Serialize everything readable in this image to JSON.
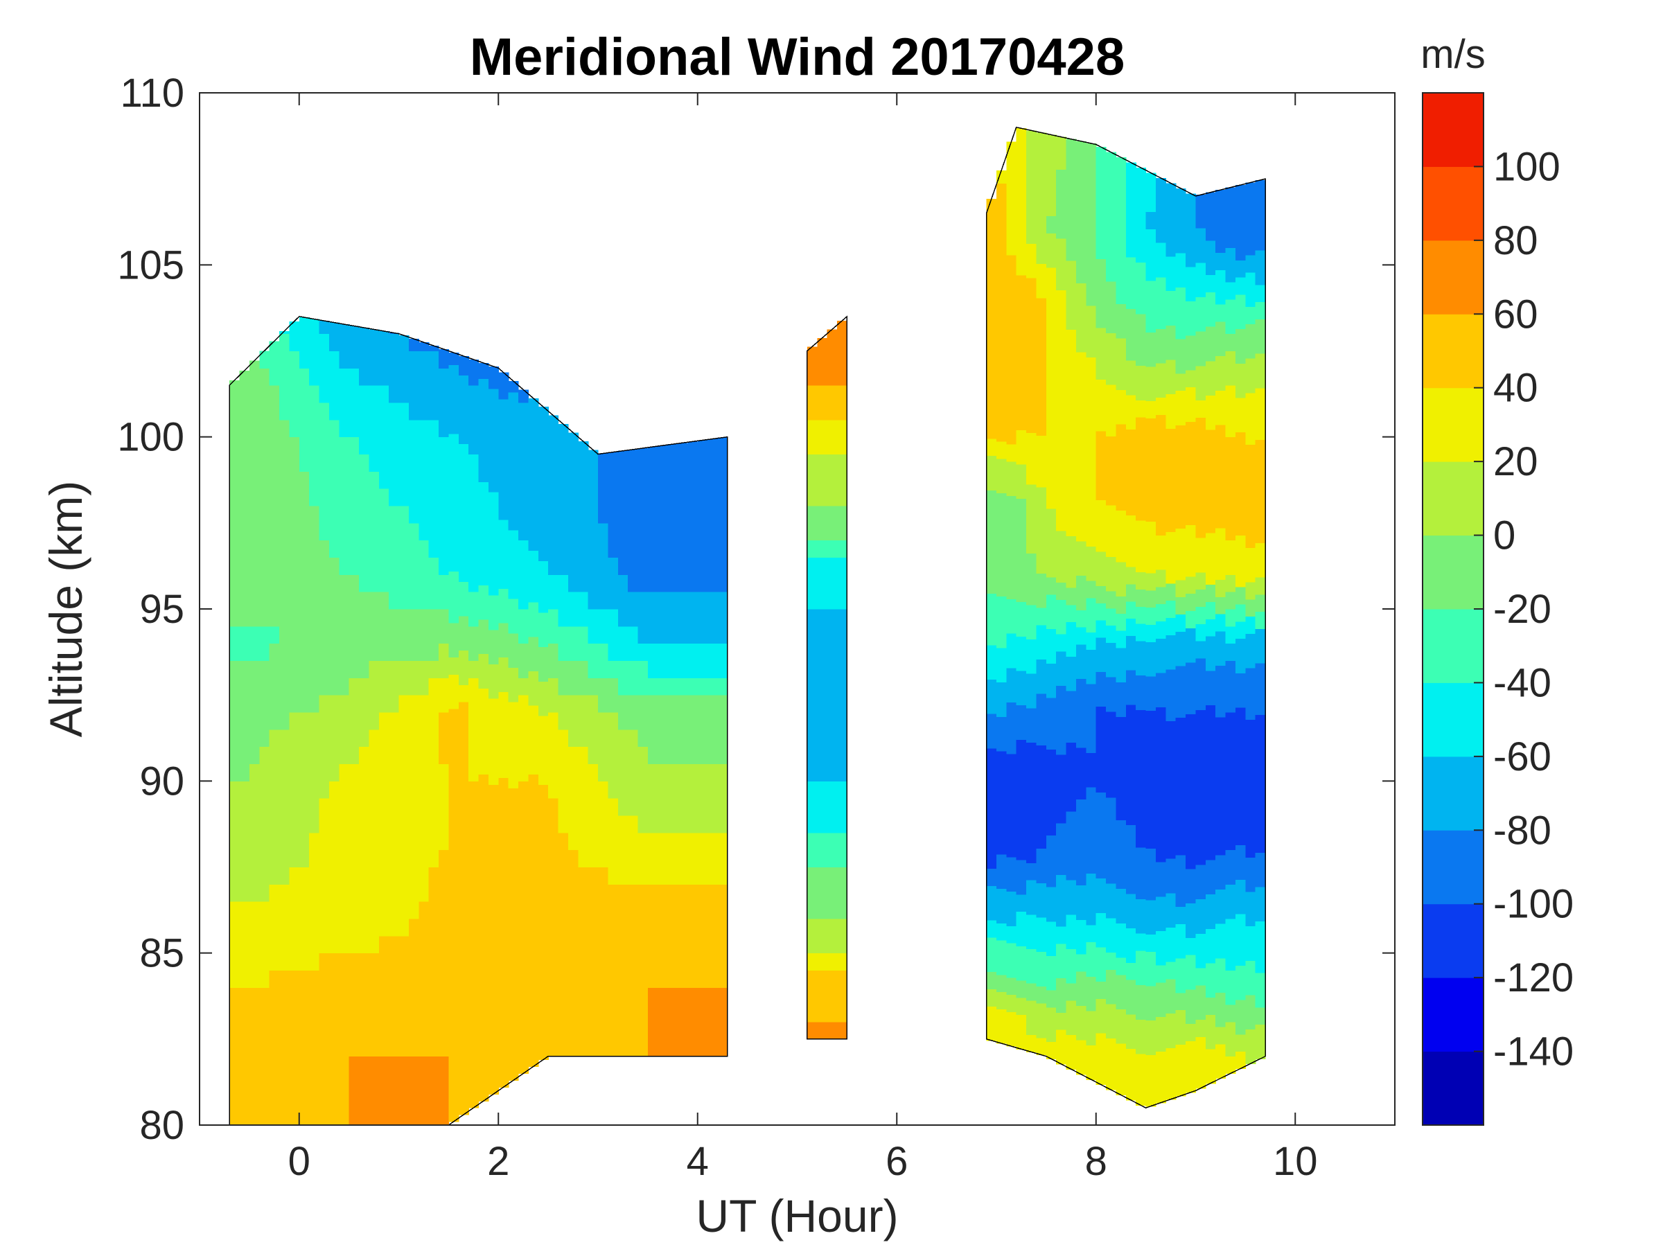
{
  "chart_data": {
    "type": "heatmap",
    "title": "Meridional Wind 20170428",
    "xlabel": "UT (Hour)",
    "ylabel": "Altitude (km)",
    "xlim": [
      -1,
      11
    ],
    "ylim": [
      80,
      110
    ],
    "xticks": [
      0,
      2,
      4,
      6,
      8,
      10
    ],
    "xtick_labels": [
      "0",
      "2",
      "4",
      "6",
      "8",
      "10"
    ],
    "yticks": [
      80,
      85,
      90,
      95,
      100,
      105,
      110
    ],
    "ytick_labels": [
      "80",
      "85",
      "90",
      "95",
      "100",
      "105",
      "110"
    ],
    "colorbar": {
      "unit_label": "m/s",
      "range": [
        -160,
        120
      ],
      "levels": [
        -160,
        -140,
        -120,
        -100,
        -80,
        -60,
        -40,
        -20,
        0,
        20,
        40,
        60,
        80,
        100,
        120
      ],
      "colors": [
        "#0000b4",
        "#0000f0",
        "#0a3cf0",
        "#0a78f0",
        "#00b4f0",
        "#00f0f0",
        "#3cffb4",
        "#78f078",
        "#b4f03c",
        "#f0f000",
        "#ffc800",
        "#ff8c00",
        "#ff5000",
        "#f01e00"
      ],
      "ticks": [
        -140,
        -120,
        -100,
        -80,
        -60,
        -40,
        -20,
        0,
        20,
        40,
        60,
        80,
        100
      ],
      "tick_labels": [
        "-140",
        "-120",
        "-100",
        "-80",
        "-60",
        "-40",
        "-20",
        "0",
        "20",
        "40",
        "60",
        "80",
        "100"
      ]
    },
    "data_segments": [
      {
        "name": "segment-1",
        "ut_range": [
          -0.7,
          4.3
        ],
        "top_altitude_km": [
          [
            -0.7,
            101.5
          ],
          [
            0.0,
            103.5
          ],
          [
            1.0,
            103.0
          ],
          [
            2.0,
            102.0
          ],
          [
            3.0,
            99.5
          ],
          [
            4.3,
            100.0
          ]
        ],
        "bottom_altitude_km": [
          [
            -0.7,
            80.0
          ],
          [
            1.5,
            80.0
          ],
          [
            2.5,
            82.0
          ],
          [
            4.3,
            82.0
          ]
        ],
        "profile_altitudes_km": [
          82,
          84,
          86,
          88,
          90,
          92,
          94,
          96,
          98,
          100,
          102,
          104
        ],
        "profile_ut_hours": [
          -0.5,
          0.5,
          1.5,
          2.5,
          3.5
        ],
        "values_ms": [
          [
            50,
            60,
            60,
            50,
            60
          ],
          [
            40,
            50,
            50,
            60,
            60
          ],
          [
            25,
            30,
            45,
            55,
            50
          ],
          [
            5,
            30,
            40,
            45,
            25
          ],
          [
            0,
            25,
            40,
            40,
            5
          ],
          [
            -5,
            5,
            45,
            20,
            -10
          ],
          [
            -25,
            -10,
            -5,
            -20,
            -60
          ],
          [
            -10,
            -20,
            -40,
            -60,
            -90
          ],
          [
            0,
            -30,
            -50,
            -70,
            -90
          ],
          [
            -5,
            -40,
            -60,
            -70,
            -90
          ],
          [
            -10,
            -60,
            -80,
            -95,
            -90
          ],
          [
            -40,
            -85,
            -100,
            -100,
            -100
          ]
        ]
      },
      {
        "name": "segment-2",
        "ut_range": [
          5.1,
          5.5
        ],
        "top_altitude_km": [
          [
            5.1,
            102.5
          ],
          [
            5.5,
            103.5
          ]
        ],
        "bottom_altitude_km": [
          [
            5.1,
            82.5
          ],
          [
            5.5,
            82.5
          ]
        ],
        "profile_altitudes_km": [
          82,
          84,
          86,
          88,
          90,
          92,
          94,
          96,
          98,
          100,
          102
        ],
        "profile_ut_hours": [
          5.3
        ],
        "values_ms": [
          [
            70
          ],
          [
            50
          ],
          [
            0
          ],
          [
            -30
          ],
          [
            -60
          ],
          [
            -80
          ],
          [
            -70
          ],
          [
            -50
          ],
          [
            0
          ],
          [
            30
          ],
          [
            70
          ]
        ]
      },
      {
        "name": "segment-3",
        "ut_range": [
          6.9,
          9.7
        ],
        "top_altitude_km": [
          [
            6.9,
            106.5
          ],
          [
            7.2,
            109.0
          ],
          [
            8.0,
            108.5
          ],
          [
            9.0,
            107.0
          ],
          [
            9.7,
            107.5
          ]
        ],
        "bottom_altitude_km": [
          [
            6.9,
            82.5
          ],
          [
            7.5,
            82.0
          ],
          [
            8.5,
            80.5
          ],
          [
            9.0,
            81.0
          ],
          [
            9.7,
            82.0
          ]
        ],
        "profile_altitudes_km": [
          82,
          84,
          86,
          88,
          90,
          92,
          94,
          96,
          98,
          100,
          102,
          104,
          106,
          108
        ],
        "profile_ut_hours": [
          7.0,
          7.5,
          8.0,
          8.5,
          9.0,
          9.5
        ],
        "values_ms": [
          [
            60,
            40,
            30,
            20,
            30,
            20
          ],
          [
            0,
            -20,
            -10,
            -20,
            -20,
            -30
          ],
          [
            -60,
            -60,
            -60,
            -70,
            -70,
            -60
          ],
          [
            -110,
            -100,
            -90,
            -100,
            -110,
            -100
          ],
          [
            -120,
            -110,
            -100,
            -110,
            -120,
            -110
          ],
          [
            -80,
            -90,
            -100,
            -100,
            -100,
            -100
          ],
          [
            -40,
            -50,
            -60,
            -60,
            -70,
            -70
          ],
          [
            -10,
            0,
            10,
            20,
            20,
            30
          ],
          [
            -20,
            20,
            40,
            50,
            50,
            50
          ],
          [
            40,
            40,
            40,
            50,
            50,
            40
          ],
          [
            50,
            40,
            20,
            0,
            0,
            10
          ],
          [
            60,
            40,
            -10,
            -30,
            -40,
            -40
          ],
          [
            50,
            0,
            -20,
            -60,
            -80,
            -100
          ],
          [
            40,
            10,
            -20,
            -50,
            -80,
            -100
          ]
        ]
      }
    ]
  }
}
